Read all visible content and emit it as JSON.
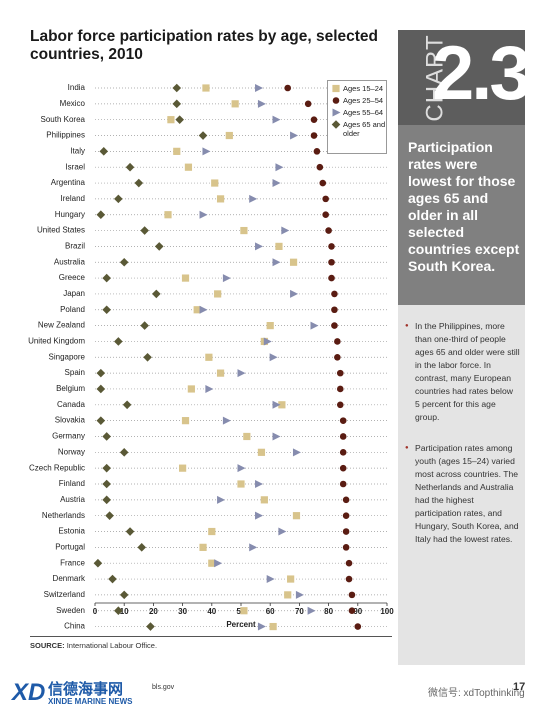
{
  "chart_data": {
    "type": "dot",
    "title": "Labor force participation rates by age, selected countries, 2010",
    "x_label": "Percent",
    "categories": [
      "India",
      "Mexico",
      "South Korea",
      "Philippines",
      "Italy",
      "Israel",
      "Argentina",
      "Ireland",
      "Hungary",
      "United States",
      "Brazil",
      "Australia",
      "Greece",
      "Japan",
      "Poland",
      "New Zealand",
      "United Kingdom",
      "Singapore",
      "Spain",
      "Belgium",
      "Canada",
      "Slovakia",
      "Germany",
      "Norway",
      "Czech Republic",
      "Finland",
      "Austria",
      "Netherlands",
      "Estonia",
      "Portugal",
      "France",
      "Denmark",
      "Switzerland",
      "Sweden",
      "China"
    ],
    "series": [
      {
        "name": "Ages 15–24",
        "color": "#d8c48c",
        "marker": "square",
        "values": [
          38,
          48,
          26,
          46,
          28,
          32,
          41,
          43,
          25,
          51,
          63,
          68,
          31,
          42,
          35,
          60,
          58,
          39,
          43,
          33,
          64,
          31,
          52,
          57,
          30,
          50,
          58,
          69,
          40,
          37,
          40,
          67,
          66,
          51,
          61
        ]
      },
      {
        "name": "Ages 25–54",
        "color": "#5a1c12",
        "marker": "circle",
        "values": [
          66,
          73,
          75,
          75,
          76,
          77,
          78,
          79,
          79,
          80,
          81,
          81,
          81,
          82,
          82,
          82,
          83,
          83,
          84,
          84,
          84,
          85,
          85,
          85,
          85,
          85,
          86,
          86,
          86,
          86,
          87,
          87,
          88,
          88,
          90
        ]
      },
      {
        "name": "Ages 55–64",
        "color": "#868cae",
        "marker": "triangle",
        "values": [
          56,
          57,
          62,
          68,
          38,
          63,
          62,
          54,
          37,
          65,
          56,
          62,
          45,
          68,
          37,
          75,
          59,
          61,
          50,
          39,
          62,
          45,
          62,
          69,
          50,
          56,
          43,
          56,
          64,
          54,
          42,
          60,
          70,
          74,
          57
        ]
      },
      {
        "name": "Ages 65 and older",
        "color": "#5a5936",
        "marker": "diamond",
        "values": [
          28,
          28,
          29,
          37,
          3,
          12,
          15,
          8,
          2,
          17,
          22,
          10,
          4,
          21,
          4,
          17,
          8,
          18,
          2,
          2,
          11,
          2,
          4,
          10,
          4,
          4,
          4,
          5,
          12,
          16,
          1,
          6,
          10,
          8,
          19
        ]
      }
    ],
    "xlim": [
      0,
      100
    ],
    "xticks": [
      0,
      10,
      20,
      30,
      40,
      50,
      60,
      70,
      80,
      90,
      100
    ],
    "row_guides": true,
    "legend": "top-right"
  },
  "sidebar": {
    "chart_word": "CHART",
    "chart_number": "2.3",
    "highlight": "Participation rates were lowest for those ages 65 and older in all selected countries except South Korea.",
    "bullets": [
      "In the Philippines, more than one-third of people ages 65 and older were still in the labor force. In contrast, many European countries had rates below 5 percent for this age group.",
      "Participation rates among youth (ages 15–24) varied most across countries. The Netherlands and Australia had the highest participation rates, and Hungary, South Korea, and Italy had the lowest rates."
    ]
  },
  "source": {
    "label": "SOURCE:",
    "text": "International Labour Office."
  },
  "footer": {
    "site": "bls.gov",
    "page": "17",
    "brand": "信德海事网",
    "brand_en": "XINDE MARINE NEWS",
    "wechat": "微信号: xdTopthinking"
  }
}
